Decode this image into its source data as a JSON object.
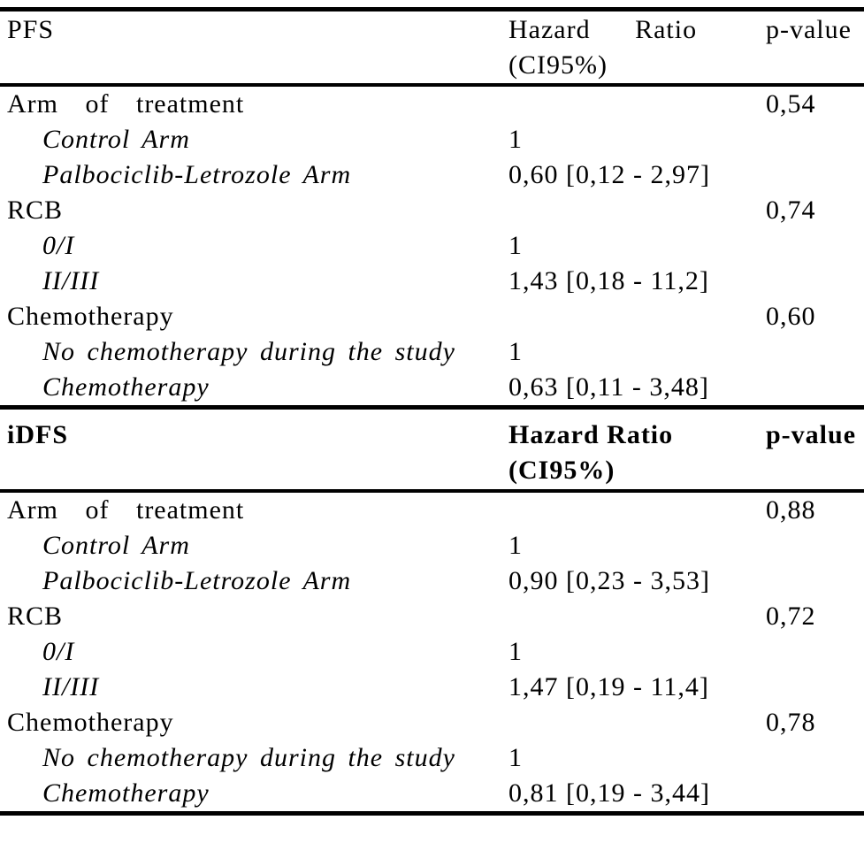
{
  "tables": [
    {
      "title": "PFS",
      "hr_header_line1": "Hazard Ratio",
      "hr_header_line2": "(CI95%)",
      "p_header": "p-value",
      "rows": [
        {
          "label": "Arm of treatment",
          "hr": "",
          "p": "0,54"
        },
        {
          "label": "Control Arm",
          "hr": "1",
          "p": ""
        },
        {
          "label": "Palbociclib-Letrozole Arm",
          "hr": "0,60 [0,12 - 2,97]",
          "p": ""
        },
        {
          "label": "RCB",
          "hr": "",
          "p": "0,74"
        },
        {
          "label": "0/I",
          "hr": "1",
          "p": ""
        },
        {
          "label": "II/III",
          "hr": "1,43 [0,18 - 11,2]",
          "p": ""
        },
        {
          "label": "Chemotherapy",
          "hr": "",
          "p": "0,60"
        },
        {
          "label": "No chemotherapy during the study",
          "hr": "1",
          "p": ""
        },
        {
          "label": "Chemotherapy",
          "hr": "0,63 [0,11 - 3,48]",
          "p": ""
        }
      ]
    },
    {
      "title": "iDFS",
      "hr_header_line1": "Hazard Ratio",
      "hr_header_line2": "(CI95%)",
      "p_header": "p-value",
      "rows": [
        {
          "label": "Arm of treatment",
          "hr": "",
          "p": "0,88"
        },
        {
          "label": "Control Arm",
          "hr": "1",
          "p": ""
        },
        {
          "label": "Palbociclib-Letrozole Arm",
          "hr": "0,90 [0,23 - 3,53]",
          "p": ""
        },
        {
          "label": "RCB",
          "hr": "",
          "p": "0,72"
        },
        {
          "label": "0/I",
          "hr": "1",
          "p": ""
        },
        {
          "label": "II/III",
          "hr": "1,47 [0,19 - 11,4]",
          "p": ""
        },
        {
          "label": "Chemotherapy",
          "hr": "",
          "p": "0,78"
        },
        {
          "label": "No chemotherapy during the study",
          "hr": "1",
          "p": ""
        },
        {
          "label": "Chemotherapy",
          "hr": "0,81 [0,19 - 3,44]",
          "p": ""
        }
      ]
    }
  ],
  "colors": {
    "text": "#000000",
    "background": "#ffffff",
    "rule": "#000000"
  }
}
